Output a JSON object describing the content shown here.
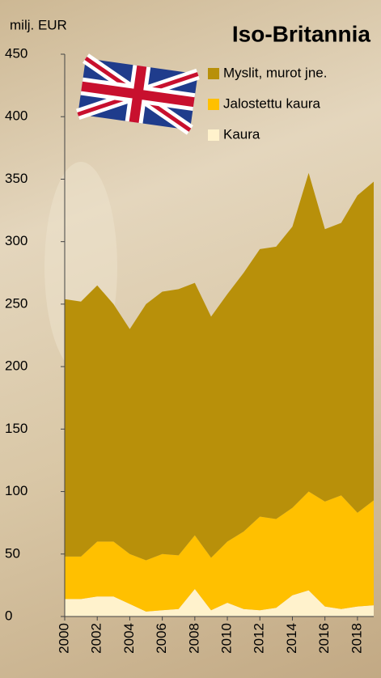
{
  "chart_data": {
    "type": "stacked-area",
    "title": "Iso-Britannia",
    "ylabel": "milj. EUR",
    "x": [
      2000,
      2001,
      2002,
      2003,
      2004,
      2005,
      2006,
      2007,
      2008,
      2009,
      2010,
      2011,
      2012,
      2013,
      2014,
      2015,
      2016,
      2017,
      2018,
      2019
    ],
    "xlim": [
      2000,
      2019
    ],
    "xticks": [
      2000,
      2002,
      2004,
      2006,
      2008,
      2010,
      2012,
      2014,
      2016,
      2018
    ],
    "ylim": [
      0,
      450
    ],
    "yticks": [
      0,
      50,
      100,
      150,
      200,
      250,
      300,
      350,
      400,
      450
    ],
    "series": [
      {
        "name": "Myslit, murot jne.",
        "color": "#b8900a",
        "values": [
          206,
          204,
          205,
          190,
          180,
          205,
          210,
          213,
          202,
          193,
          198,
          207,
          214,
          218,
          225,
          255,
          218,
          218,
          254,
          255
        ]
      },
      {
        "name": "Jalostettu kaura",
        "color": "#ffc000",
        "values": [
          34,
          34,
          44,
          44,
          40,
          41,
          45,
          43,
          43,
          42,
          49,
          62,
          75,
          71,
          70,
          79,
          84,
          91,
          75,
          84
        ]
      },
      {
        "name": "Kaura",
        "color": "#fff2cc",
        "values": [
          14,
          14,
          16,
          16,
          10,
          4,
          5,
          6,
          22,
          5,
          11,
          6,
          5,
          7,
          17,
          21,
          8,
          6,
          8,
          9
        ]
      }
    ]
  }
}
